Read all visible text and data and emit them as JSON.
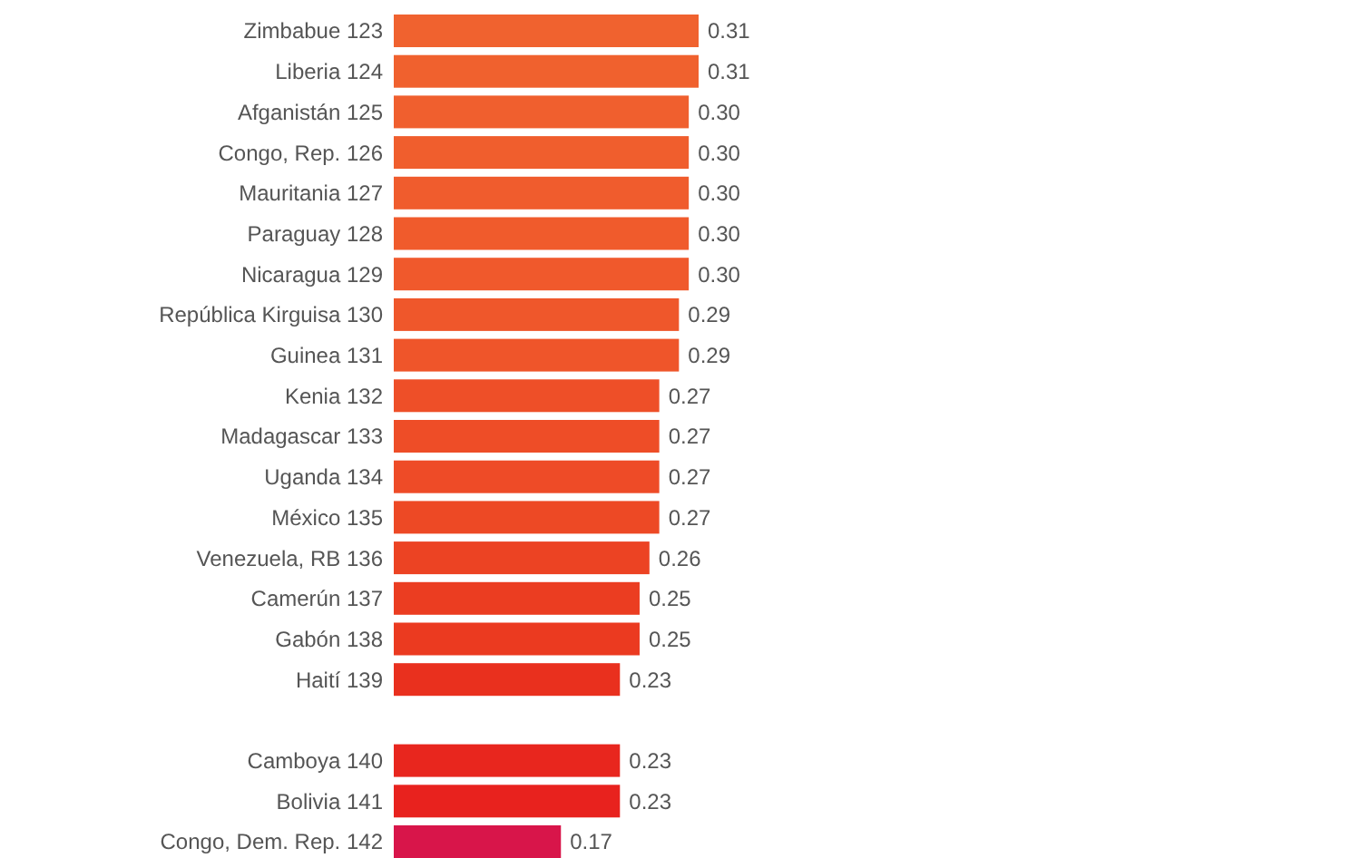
{
  "chart_data": {
    "type": "bar",
    "orientation": "horizontal",
    "value_labels": [
      "0.31",
      "0.31",
      "0.30",
      "0.30",
      "0.30",
      "0.30",
      "0.30",
      "0.29",
      "0.29",
      "0.27",
      "0.27",
      "0.27",
      "0.27",
      "0.26",
      "0.25",
      "0.25",
      "0.23",
      null,
      "0.23",
      "0.23",
      "0.17"
    ],
    "categories": [
      "Zimbabue 123",
      "Liberia 124",
      "Afganistán 125",
      "Congo, Rep. 126",
      "Mauritania 127",
      "Paraguay 128",
      "Nicaragua 129",
      "República Kirguisa 130",
      "Guinea 131",
      "Kenia 132",
      "Madagascar 133",
      "Uganda 134",
      "México 135",
      "Venezuela, RB 136",
      "Camerún 137",
      "Gabón 138",
      "Haití 139",
      null,
      "Camboya 140",
      "Bolivia 141",
      "Congo, Dem. Rep. 142"
    ],
    "values": [
      0.31,
      0.31,
      0.3,
      0.3,
      0.3,
      0.3,
      0.3,
      0.29,
      0.29,
      0.27,
      0.27,
      0.27,
      0.27,
      0.26,
      0.25,
      0.25,
      0.23,
      null,
      0.23,
      0.23,
      0.17
    ],
    "colors": [
      "#f0622f",
      "#f0612e",
      "#f05f2e",
      "#f05e2d",
      "#f05c2d",
      "#f05b2c",
      "#f0592c",
      "#ef572b",
      "#ef552a",
      "#ee4f28",
      "#ee4d27",
      "#ee4b27",
      "#ed4925",
      "#ec4323",
      "#eb3d21",
      "#eb3a20",
      "#e9301e",
      null,
      "#e8261e",
      "#e8221e",
      "#d8154a"
    ]
  }
}
